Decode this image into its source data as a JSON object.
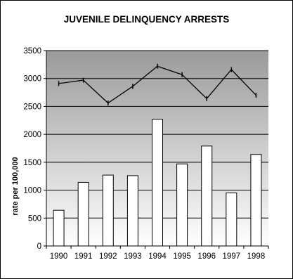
{
  "chart_data": {
    "type": "bar+line",
    "title": "JUVENILE DELINQUENCY ARRESTS",
    "ylabel": "rate per 100,000",
    "xlabel": "",
    "ylim": [
      0,
      3500
    ],
    "yticks": [
      0,
      500,
      1000,
      1500,
      2000,
      2500,
      3000,
      3500
    ],
    "categories": [
      "1990",
      "1991",
      "1992",
      "1993",
      "1994",
      "1995",
      "1996",
      "1997",
      "1998"
    ],
    "series": [
      {
        "type": "bar",
        "values": [
          640,
          1140,
          1270,
          1260,
          2270,
          1470,
          1790,
          950,
          1640
        ]
      },
      {
        "type": "line",
        "values": [
          2910,
          2970,
          2560,
          2860,
          3220,
          3070,
          2640,
          3160,
          2700
        ]
      }
    ],
    "grid": true,
    "legend": "none"
  },
  "colors": {
    "bar_fill": "#ffffff",
    "line": "#000000",
    "plot_gradient_top": "#9a9a9a",
    "plot_gradient_bottom": "#ffffff"
  }
}
